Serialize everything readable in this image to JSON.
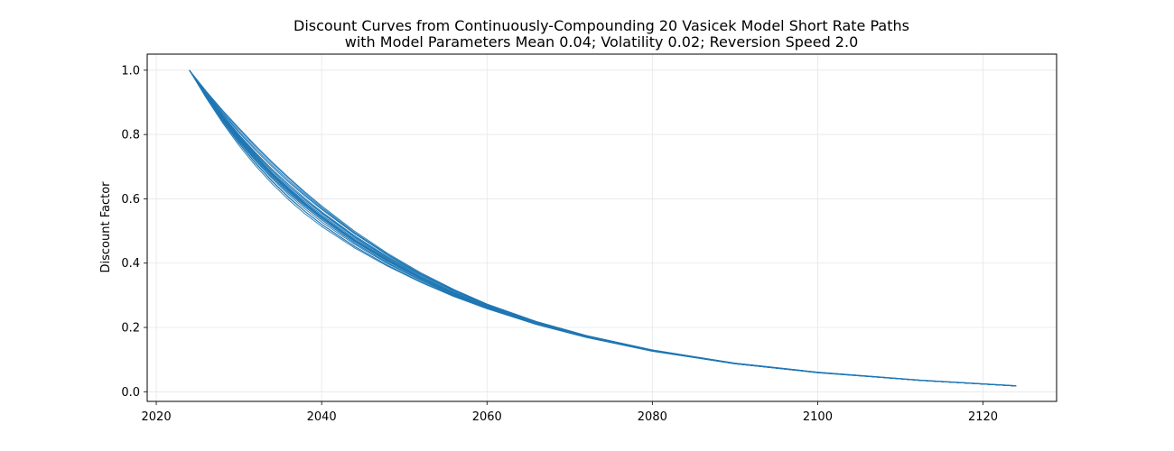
{
  "chart_data": {
    "type": "line",
    "title": "Discount Curves from Continuously-Compounding 20 Vasicek Model Short Rate Paths",
    "subtitle": "with Model Parameters Mean 0.04; Volatility 0.02; Reversion Speed 2.0",
    "xlabel": "",
    "ylabel": "Discount Factor",
    "xlim": [
      2018.9,
      2128.9
    ],
    "ylim": [
      -0.03,
      1.05
    ],
    "xticks": [
      2020,
      2040,
      2060,
      2080,
      2100,
      2120
    ],
    "yticks": [
      0.0,
      0.2,
      0.4,
      0.6,
      0.8,
      1.0
    ],
    "grid": true,
    "line_color": "#1f77b4",
    "x": [
      2024,
      2026,
      2028,
      2030,
      2032,
      2034,
      2036,
      2038,
      2040,
      2044,
      2048,
      2052,
      2056,
      2060,
      2066,
      2072,
      2080,
      2090,
      2100,
      2112,
      2124
    ],
    "series": [
      {
        "values": [
          1.0,
          0.925,
          0.851,
          0.785,
          0.726,
          0.675,
          0.628,
          0.585,
          0.545,
          0.471,
          0.409,
          0.354,
          0.305,
          0.263,
          0.212,
          0.171,
          0.127,
          0.087,
          0.06,
          0.036,
          0.018
        ]
      },
      {
        "values": [
          1.0,
          0.924,
          0.855,
          0.791,
          0.734,
          0.682,
          0.635,
          0.591,
          0.55,
          0.476,
          0.412,
          0.356,
          0.307,
          0.265,
          0.213,
          0.172,
          0.128,
          0.088,
          0.06,
          0.036,
          0.018
        ]
      },
      {
        "values": [
          1.0,
          0.918,
          0.843,
          0.775,
          0.712,
          0.656,
          0.606,
          0.561,
          0.521,
          0.452,
          0.393,
          0.342,
          0.298,
          0.259,
          0.21,
          0.17,
          0.127,
          0.087,
          0.06,
          0.036,
          0.018
        ]
      },
      {
        "values": [
          1.0,
          0.93,
          0.866,
          0.806,
          0.751,
          0.7,
          0.652,
          0.608,
          0.567,
          0.491,
          0.425,
          0.367,
          0.316,
          0.272,
          0.218,
          0.175,
          0.13,
          0.089,
          0.061,
          0.037,
          0.019
        ]
      },
      {
        "values": [
          1.0,
          0.921,
          0.848,
          0.782,
          0.722,
          0.668,
          0.619,
          0.575,
          0.535,
          0.463,
          0.401,
          0.348,
          0.301,
          0.261,
          0.211,
          0.17,
          0.127,
          0.087,
          0.06,
          0.036,
          0.018
        ]
      },
      {
        "values": [
          1.0,
          0.933,
          0.872,
          0.816,
          0.762,
          0.711,
          0.663,
          0.617,
          0.574,
          0.495,
          0.427,
          0.367,
          0.315,
          0.27,
          0.216,
          0.173,
          0.129,
          0.088,
          0.06,
          0.036,
          0.018
        ]
      },
      {
        "values": [
          1.0,
          0.915,
          0.837,
          0.766,
          0.703,
          0.647,
          0.597,
          0.553,
          0.514,
          0.447,
          0.39,
          0.34,
          0.296,
          0.258,
          0.209,
          0.169,
          0.126,
          0.087,
          0.059,
          0.036,
          0.018
        ]
      },
      {
        "values": [
          1.0,
          0.927,
          0.858,
          0.795,
          0.738,
          0.687,
          0.64,
          0.597,
          0.557,
          0.482,
          0.417,
          0.36,
          0.31,
          0.267,
          0.214,
          0.172,
          0.128,
          0.088,
          0.06,
          0.036,
          0.018
        ]
      },
      {
        "values": [
          1.0,
          0.922,
          0.85,
          0.785,
          0.726,
          0.672,
          0.623,
          0.579,
          0.539,
          0.467,
          0.405,
          0.351,
          0.303,
          0.262,
          0.212,
          0.171,
          0.127,
          0.087,
          0.06,
          0.036,
          0.018
        ]
      },
      {
        "values": [
          1.0,
          0.936,
          0.876,
          0.82,
          0.766,
          0.715,
          0.667,
          0.621,
          0.578,
          0.499,
          0.43,
          0.37,
          0.318,
          0.273,
          0.218,
          0.175,
          0.13,
          0.089,
          0.061,
          0.037,
          0.019
        ]
      },
      {
        "values": [
          1.0,
          0.919,
          0.846,
          0.779,
          0.718,
          0.663,
          0.613,
          0.568,
          0.528,
          0.458,
          0.398,
          0.346,
          0.3,
          0.26,
          0.21,
          0.17,
          0.127,
          0.087,
          0.06,
          0.036,
          0.018
        ]
      },
      {
        "values": [
          1.0,
          0.926,
          0.857,
          0.793,
          0.735,
          0.681,
          0.632,
          0.587,
          0.546,
          0.472,
          0.409,
          0.354,
          0.306,
          0.264,
          0.213,
          0.171,
          0.128,
          0.088,
          0.06,
          0.036,
          0.018
        ]
      },
      {
        "values": [
          1.0,
          0.923,
          0.852,
          0.788,
          0.729,
          0.676,
          0.627,
          0.583,
          0.543,
          0.47,
          0.407,
          0.352,
          0.304,
          0.263,
          0.212,
          0.171,
          0.127,
          0.087,
          0.06,
          0.036,
          0.018
        ]
      },
      {
        "values": [
          1.0,
          0.929,
          0.862,
          0.8,
          0.744,
          0.692,
          0.645,
          0.601,
          0.56,
          0.485,
          0.42,
          0.363,
          0.313,
          0.269,
          0.216,
          0.173,
          0.129,
          0.088,
          0.06,
          0.036,
          0.018
        ]
      },
      {
        "values": [
          1.0,
          0.917,
          0.841,
          0.772,
          0.71,
          0.654,
          0.604,
          0.56,
          0.52,
          0.451,
          0.393,
          0.342,
          0.298,
          0.259,
          0.209,
          0.169,
          0.126,
          0.087,
          0.059,
          0.036,
          0.018
        ]
      },
      {
        "values": [
          1.0,
          0.928,
          0.861,
          0.798,
          0.741,
          0.688,
          0.64,
          0.596,
          0.555,
          0.48,
          0.415,
          0.359,
          0.309,
          0.267,
          0.214,
          0.172,
          0.128,
          0.088,
          0.06,
          0.036,
          0.018
        ]
      },
      {
        "values": [
          1.0,
          0.924,
          0.853,
          0.787,
          0.727,
          0.673,
          0.624,
          0.58,
          0.54,
          0.468,
          0.406,
          0.352,
          0.304,
          0.263,
          0.212,
          0.171,
          0.127,
          0.087,
          0.06,
          0.036,
          0.018
        ]
      },
      {
        "values": [
          1.0,
          0.931,
          0.868,
          0.81,
          0.756,
          0.705,
          0.657,
          0.612,
          0.57,
          0.492,
          0.424,
          0.365,
          0.314,
          0.27,
          0.216,
          0.174,
          0.129,
          0.088,
          0.06,
          0.036,
          0.018
        ]
      },
      {
        "values": [
          1.0,
          0.92,
          0.847,
          0.781,
          0.721,
          0.667,
          0.618,
          0.574,
          0.534,
          0.462,
          0.401,
          0.347,
          0.301,
          0.261,
          0.211,
          0.17,
          0.127,
          0.087,
          0.06,
          0.036,
          0.018
        ]
      },
      {
        "values": [
          1.0,
          0.926,
          0.856,
          0.791,
          0.732,
          0.678,
          0.629,
          0.585,
          0.545,
          0.472,
          0.409,
          0.354,
          0.306,
          0.264,
          0.213,
          0.171,
          0.128,
          0.088,
          0.06,
          0.036,
          0.018
        ]
      }
    ]
  }
}
